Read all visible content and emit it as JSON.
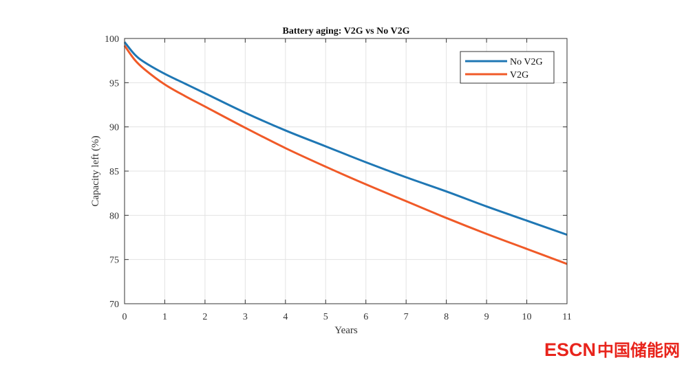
{
  "chart_data": {
    "type": "line",
    "title": "Battery aging: V2G vs No V2G",
    "xlabel": "Years",
    "ylabel": "Capacity left (%)",
    "xlim": [
      0,
      11
    ],
    "ylim": [
      70,
      100
    ],
    "xticks": [
      "0",
      "1",
      "2",
      "3",
      "4",
      "5",
      "6",
      "7",
      "8",
      "9",
      "10",
      "11"
    ],
    "yticks": [
      "70",
      "75",
      "80",
      "85",
      "90",
      "95",
      "100"
    ],
    "grid": true,
    "legend_position": "top-right",
    "x": [
      0,
      0.25,
      0.5,
      1,
      1.5,
      2,
      3,
      4,
      5,
      6,
      7,
      8,
      9,
      10,
      11
    ],
    "series": [
      {
        "name": "No V2G",
        "color": "#1f77b4",
        "values": [
          99.6,
          98.2,
          97.3,
          96.0,
          94.9,
          93.8,
          91.6,
          89.6,
          87.8,
          86.0,
          84.3,
          82.7,
          81.0,
          79.4,
          77.8
        ]
      },
      {
        "name": "V2G",
        "color": "#f05a28",
        "values": [
          99.2,
          97.6,
          96.5,
          94.8,
          93.5,
          92.3,
          89.9,
          87.6,
          85.5,
          83.5,
          81.6,
          79.7,
          77.9,
          76.2,
          74.5
        ]
      }
    ]
  },
  "watermark": {
    "latin": "ESCN",
    "chinese": "中国储能网",
    "color": "#e8241c"
  }
}
